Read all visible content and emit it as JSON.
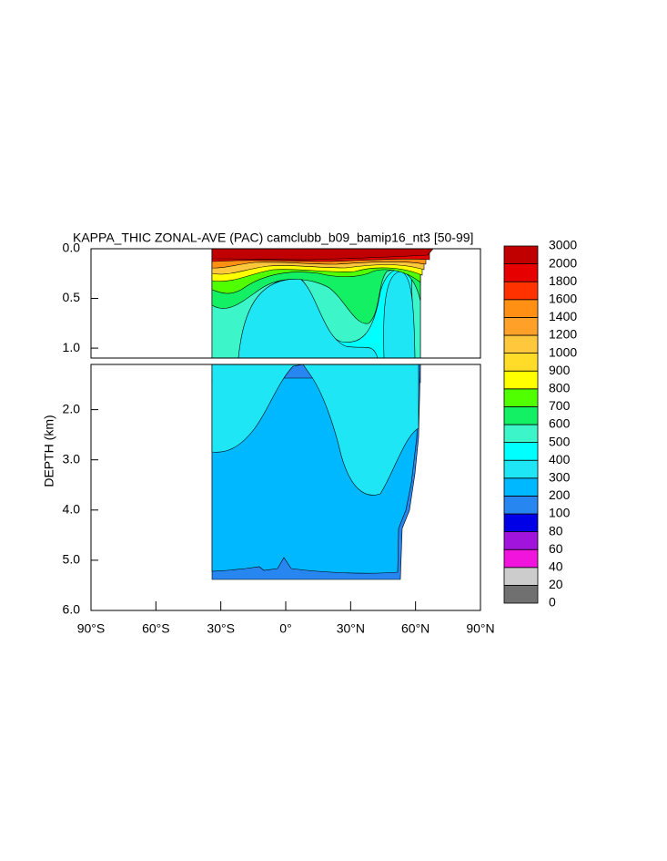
{
  "chart_data": {
    "type": "contour",
    "title": "KAPPA_THIC ZONAL-AVE (PAC) camclubb_b09_bamip16_nt3 [50-99]",
    "ylabel": "DEPTH (km)",
    "xlim": [
      -90,
      90
    ],
    "xticks": [
      {
        "value": -90,
        "label": "90°S"
      },
      {
        "value": -60,
        "label": "60°S"
      },
      {
        "value": -30,
        "label": "30°S"
      },
      {
        "value": 0,
        "label": "0°"
      },
      {
        "value": 30,
        "label": "30°N"
      },
      {
        "value": 60,
        "label": "60°N"
      },
      {
        "value": 90,
        "label": "90°N"
      }
    ],
    "panels": [
      {
        "ylim": [
          0,
          1.1
        ],
        "yticks": [
          {
            "value": 0,
            "label": "0.0"
          },
          {
            "value": 0.5,
            "label": "0.5"
          },
          {
            "value": 1.0,
            "label": "1.0"
          }
        ]
      },
      {
        "ylim": [
          1.1,
          6.0
        ],
        "yticks": [
          {
            "value": 2.0,
            "label": "2.0"
          },
          {
            "value": 3.0,
            "label": "3.0"
          },
          {
            "value": 4.0,
            "label": "4.0"
          },
          {
            "value": 5.0,
            "label": "5.0"
          },
          {
            "value": 6.0,
            "label": "6.0"
          }
        ]
      }
    ],
    "colorbar": {
      "levels": [
        0,
        20,
        40,
        60,
        80,
        100,
        200,
        300,
        400,
        500,
        600,
        700,
        800,
        900,
        1000,
        1200,
        1400,
        1600,
        1800,
        2000,
        3000
      ],
      "colors": [
        "#707070",
        "#cccccc",
        "#f014dc",
        "#a014dc",
        "#0000e6",
        "#2886f0",
        "#00b8ff",
        "#1ee6f5",
        "#00ffff",
        "#3cf5c8",
        "#14f064",
        "#50ff00",
        "#ffff00",
        "#ffdc28",
        "#ffc83c",
        "#ffa028",
        "#ff9014",
        "#ff3200",
        "#e60000",
        "#c00000"
      ]
    }
  }
}
